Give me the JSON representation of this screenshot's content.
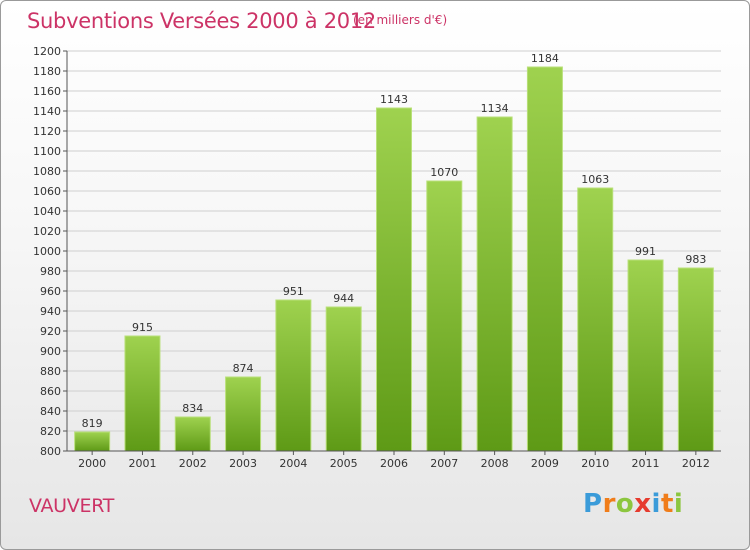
{
  "title": "Subventions Versées 2000 à 2012",
  "unit": "(en milliers d'€)",
  "commune": "VAUVERT",
  "logo": {
    "letters": [
      {
        "ch": "P",
        "color": "#3a9bd9"
      },
      {
        "ch": "r",
        "color": "#f07d1a"
      },
      {
        "ch": "o",
        "color": "#8cc63f"
      },
      {
        "ch": "x",
        "color": "#e63b2e"
      },
      {
        "ch": "i",
        "color": "#3a9bd9"
      },
      {
        "ch": "t",
        "color": "#f07d1a"
      },
      {
        "ch": "i",
        "color": "#8cc63f"
      }
    ]
  },
  "colors": {
    "bar_top": "#9fd24f",
    "bar_bottom": "#5e9a16",
    "grid": "#cfcfcf",
    "axis": "#555555",
    "title": "#cc3366"
  },
  "chart_data": {
    "type": "bar",
    "title": "Subventions Versées 2000 à 2012",
    "ylabel": "(en milliers d'€)",
    "xlabel": "",
    "categories": [
      "2000",
      "2001",
      "2002",
      "2003",
      "2004",
      "2005",
      "2006",
      "2007",
      "2008",
      "2009",
      "2010",
      "2011",
      "2012"
    ],
    "values": [
      819,
      915,
      834,
      874,
      951,
      944,
      1143,
      1070,
      1134,
      1184,
      1063,
      991,
      983
    ],
    "ylim": [
      800,
      1200
    ],
    "ytick_step": 20,
    "grid": true,
    "legend": "none"
  }
}
